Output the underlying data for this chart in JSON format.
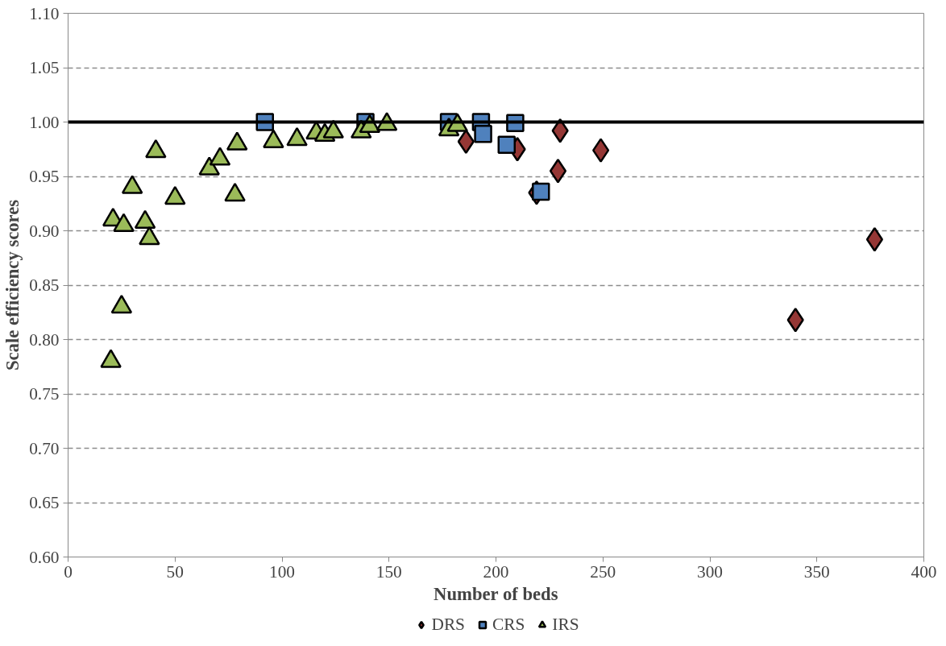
{
  "chart_data": {
    "type": "scatter",
    "xlabel": "Number of beds",
    "ylabel": "Scale efficiency scores",
    "xlim": [
      0,
      400
    ],
    "xticks": [
      0,
      50,
      100,
      150,
      200,
      250,
      300,
      350,
      400
    ],
    "ylim": [
      0.6,
      1.1
    ],
    "yticks": [
      {
        "value": 0.6,
        "label": "0.60"
      },
      {
        "value": 0.65,
        "label": "0.65"
      },
      {
        "value": 0.7,
        "label": "0.70"
      },
      {
        "value": 0.75,
        "label": "0.75"
      },
      {
        "value": 0.8,
        "label": "0.80"
      },
      {
        "value": 0.85,
        "label": "0.85"
      },
      {
        "value": 0.9,
        "label": "0.90"
      },
      {
        "value": 0.95,
        "label": "0.95"
      },
      {
        "value": 1.0,
        "label": "1.00"
      },
      {
        "value": 1.05,
        "label": "1.05"
      },
      {
        "value": 1.1,
        "label": "1.10"
      }
    ],
    "grid": "y",
    "legend": "bottom",
    "ref_lines": [
      {
        "axis": "y",
        "value": 1.0,
        "label": null,
        "color": "#000000",
        "line_style": "solid"
      }
    ],
    "series": [
      {
        "name": "DRS",
        "color": "#953735",
        "marker": "diamond",
        "x": [
          186,
          210,
          219,
          229,
          230,
          249,
          340,
          377
        ],
        "values": [
          0.982,
          0.975,
          0.935,
          0.955,
          0.992,
          0.974,
          0.818,
          0.892
        ]
      },
      {
        "name": "CRS",
        "color": "#4f81bd",
        "marker": "square",
        "x": [
          92,
          139,
          178,
          193,
          194,
          209,
          205,
          221
        ],
        "values": [
          1.0,
          1.0,
          1.0,
          1.0,
          0.989,
          0.999,
          0.979,
          0.936
        ]
      },
      {
        "name": "IRS",
        "color": "#9bbb59",
        "marker": "triangle",
        "x": [
          20,
          21,
          25,
          26,
          30,
          36,
          38,
          41,
          50,
          66,
          71,
          78,
          79,
          96,
          107,
          116,
          120,
          124,
          137,
          141,
          149,
          178,
          182
        ],
        "values": [
          0.78,
          0.91,
          0.83,
          0.905,
          0.94,
          0.908,
          0.893,
          0.973,
          0.93,
          0.957,
          0.966,
          0.933,
          0.98,
          0.982,
          0.984,
          0.99,
          0.988,
          0.991,
          0.991,
          0.996,
          0.998,
          0.993,
          0.997
        ]
      }
    ]
  }
}
